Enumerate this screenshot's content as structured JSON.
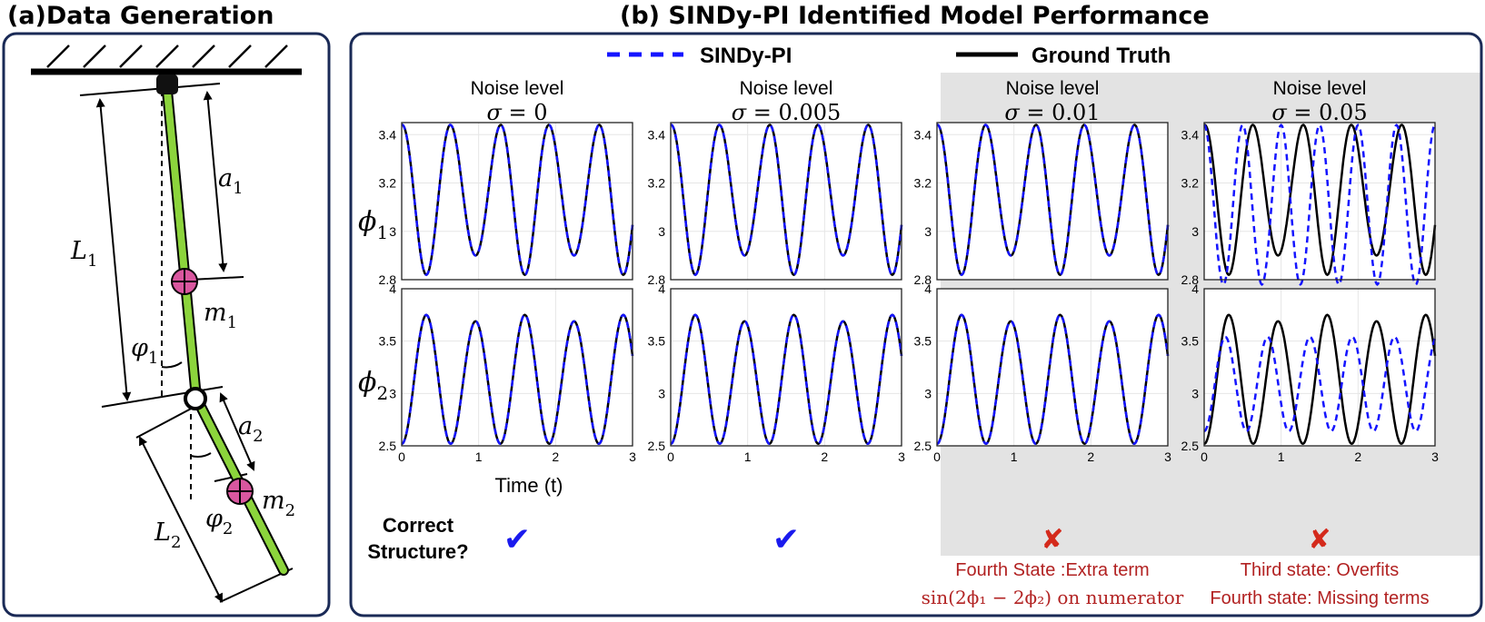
{
  "panel_a": {
    "title": "(a)Data Generation",
    "labels": {
      "a1": "a",
      "a1_sub": "1",
      "L1": "L",
      "L1_sub": "1",
      "m1": "m",
      "m1_sub": "1",
      "phi1": "φ",
      "phi1_sub": "1",
      "a2": "a",
      "a2_sub": "2",
      "L2": "L",
      "L2_sub": "2",
      "m2": "m",
      "m2_sub": "2",
      "phi2": "φ",
      "phi2_sub": "2"
    },
    "colors": {
      "link": "#8cd43c",
      "mass": "#d9579f",
      "frame": "#1a2a56"
    }
  },
  "panel_b": {
    "title": "(b) SINDy-PI Identified Model Performance",
    "legend": {
      "sindy_label": "SINDy-PI",
      "truth_label": "Ground Truth",
      "sindy_color": "#1414ff",
      "truth_color": "#000000"
    },
    "noise_header": "Noise level",
    "sigma_symbol": "σ",
    "columns": [
      {
        "sigma": "= 0",
        "correct": true,
        "highlighted": false,
        "note_lines": []
      },
      {
        "sigma": "= 0.005",
        "correct": true,
        "highlighted": false,
        "note_lines": []
      },
      {
        "sigma": "= 0.01",
        "correct": false,
        "highlighted": true,
        "note_lines": [
          "Fourth State :Extra term",
          "sin(2ϕ₁ − 2ϕ₂) on numerator"
        ]
      },
      {
        "sigma": "= 0.05",
        "correct": false,
        "highlighted": true,
        "note_lines": [
          "Third state: Overfits",
          "Fourth state: Missing terms"
        ]
      }
    ],
    "row_labels": [
      {
        "symbol": "ϕ",
        "sub": "1"
      },
      {
        "symbol": "ϕ",
        "sub": "2"
      }
    ],
    "xlabel": "Time (t)",
    "structure_question": [
      "Correct",
      "Structure?"
    ],
    "check_mark": "✔",
    "cross_mark": "✘",
    "check_color": "#1a1aee",
    "cross_color": "#d42a1c",
    "note_color": "#b22222",
    "highlight_color": "#e3e3e3"
  },
  "chart_data": [
    {
      "type": "line",
      "title": "Noise level σ = 0 — ϕ1",
      "x": [
        0,
        3
      ],
      "xlim": [
        0,
        3
      ],
      "ylim": [
        2.8,
        3.45
      ],
      "xticks": [
        "0",
        "1",
        "2",
        "3"
      ],
      "yticks": [
        "2.8",
        "3",
        "3.2",
        "3.4"
      ],
      "grid": true,
      "series": [
        {
          "name": "SINDy-PI",
          "style": "dashed",
          "offset": 3.15,
          "amplitude": 0.29,
          "period": 0.64,
          "start_phase": "max",
          "amplitude_variation": 0.04
        },
        {
          "name": "Ground Truth",
          "style": "solid",
          "offset": 3.15,
          "amplitude": 0.29,
          "period": 0.64,
          "start_phase": "max",
          "amplitude_variation": 0.04
        }
      ]
    },
    {
      "type": "line",
      "title": "Noise level σ = 0.005 — ϕ1",
      "x": [
        0,
        3
      ],
      "xlim": [
        0,
        3
      ],
      "ylim": [
        2.8,
        3.45
      ],
      "xticks": [
        "0",
        "1",
        "2",
        "3"
      ],
      "yticks": [
        "2.8",
        "3",
        "3.2",
        "3.4"
      ],
      "grid": true,
      "series": [
        {
          "name": "SINDy-PI",
          "style": "dashed",
          "offset": 3.15,
          "amplitude": 0.29,
          "period": 0.64,
          "start_phase": "max",
          "amplitude_variation": 0.04
        },
        {
          "name": "Ground Truth",
          "style": "solid",
          "offset": 3.15,
          "amplitude": 0.29,
          "period": 0.64,
          "start_phase": "max",
          "amplitude_variation": 0.04
        }
      ]
    },
    {
      "type": "line",
      "title": "Noise level σ = 0.01 — ϕ1",
      "x": [
        0,
        3
      ],
      "xlim": [
        0,
        3
      ],
      "ylim": [
        2.8,
        3.45
      ],
      "xticks": [
        "0",
        "1",
        "2",
        "3"
      ],
      "yticks": [
        "2.8",
        "3",
        "3.2",
        "3.4"
      ],
      "grid": true,
      "series": [
        {
          "name": "SINDy-PI",
          "style": "dashed",
          "offset": 3.15,
          "amplitude": 0.29,
          "period": 0.64,
          "start_phase": "max",
          "amplitude_variation": 0.04
        },
        {
          "name": "Ground Truth",
          "style": "solid",
          "offset": 3.15,
          "amplitude": 0.29,
          "period": 0.64,
          "start_phase": "max",
          "amplitude_variation": 0.04
        }
      ]
    },
    {
      "type": "line",
      "title": "Noise level σ = 0.05 — ϕ1",
      "x": [
        0,
        3
      ],
      "xlim": [
        0,
        3
      ],
      "ylim": [
        2.8,
        3.45
      ],
      "xticks": [
        "0",
        "1",
        "2",
        "3"
      ],
      "yticks": [
        "2.8",
        "3",
        "3.2",
        "3.4"
      ],
      "grid": true,
      "series": [
        {
          "name": "SINDy-PI",
          "style": "dashed",
          "offset": 3.11,
          "amplitude": 0.33,
          "period": 0.5,
          "start_phase": "max",
          "amplitude_variation": 0.0
        },
        {
          "name": "Ground Truth",
          "style": "solid",
          "offset": 3.15,
          "amplitude": 0.29,
          "period": 0.64,
          "start_phase": "max",
          "amplitude_variation": 0.04
        }
      ]
    },
    {
      "type": "line",
      "title": "Noise level σ = 0 — ϕ2",
      "x": [
        0,
        3
      ],
      "xlim": [
        0,
        3
      ],
      "ylim": [
        2.5,
        4
      ],
      "xticks": [
        "0",
        "1",
        "2",
        "3"
      ],
      "yticks": [
        "2.5",
        "3",
        "3.5",
        "4"
      ],
      "grid": true,
      "series": [
        {
          "name": "SINDy-PI",
          "style": "dashed",
          "offset": 3.12,
          "amplitude": 0.6,
          "period": 0.64,
          "start_phase": "min",
          "amplitude_variation": 0.03
        },
        {
          "name": "Ground Truth",
          "style": "solid",
          "offset": 3.12,
          "amplitude": 0.6,
          "period": 0.64,
          "start_phase": "min",
          "amplitude_variation": 0.03
        }
      ]
    },
    {
      "type": "line",
      "title": "Noise level σ = 0.005 — ϕ2",
      "x": [
        0,
        3
      ],
      "xlim": [
        0,
        3
      ],
      "ylim": [
        2.5,
        4
      ],
      "xticks": [
        "0",
        "1",
        "2",
        "3"
      ],
      "yticks": [
        "2.5",
        "3",
        "3.5",
        "4"
      ],
      "grid": true,
      "series": [
        {
          "name": "SINDy-PI",
          "style": "dashed",
          "offset": 3.12,
          "amplitude": 0.6,
          "period": 0.64,
          "start_phase": "min",
          "amplitude_variation": 0.03
        },
        {
          "name": "Ground Truth",
          "style": "solid",
          "offset": 3.12,
          "amplitude": 0.6,
          "period": 0.64,
          "start_phase": "min",
          "amplitude_variation": 0.03
        }
      ]
    },
    {
      "type": "line",
      "title": "Noise level σ = 0.01 — ϕ2",
      "x": [
        0,
        3
      ],
      "xlim": [
        0,
        3
      ],
      "ylim": [
        2.5,
        4
      ],
      "xticks": [
        "0",
        "1",
        "2",
        "3"
      ],
      "yticks": [
        "2.5",
        "3",
        "3.5",
        "4"
      ],
      "grid": true,
      "series": [
        {
          "name": "SINDy-PI",
          "style": "dashed",
          "offset": 3.12,
          "amplitude": 0.6,
          "period": 0.64,
          "start_phase": "min",
          "amplitude_variation": 0.03
        },
        {
          "name": "Ground Truth",
          "style": "solid",
          "offset": 3.12,
          "amplitude": 0.6,
          "period": 0.64,
          "start_phase": "min",
          "amplitude_variation": 0.03
        }
      ]
    },
    {
      "type": "line",
      "title": "Noise level σ = 0.05 — ϕ2",
      "x": [
        0,
        3
      ],
      "xlim": [
        0,
        3
      ],
      "ylim": [
        2.5,
        4
      ],
      "xticks": [
        "0",
        "1",
        "2",
        "3"
      ],
      "yticks": [
        "2.5",
        "3",
        "3.5",
        "4"
      ],
      "grid": true,
      "series": [
        {
          "name": "SINDy-PI",
          "style": "dashed",
          "offset": 3.09,
          "amplitude": 0.45,
          "period": 0.55,
          "start_phase": "min",
          "amplitude_variation": 0.0
        },
        {
          "name": "Ground Truth",
          "style": "solid",
          "offset": 3.12,
          "amplitude": 0.6,
          "period": 0.64,
          "start_phase": "min",
          "amplitude_variation": 0.03
        }
      ]
    }
  ]
}
